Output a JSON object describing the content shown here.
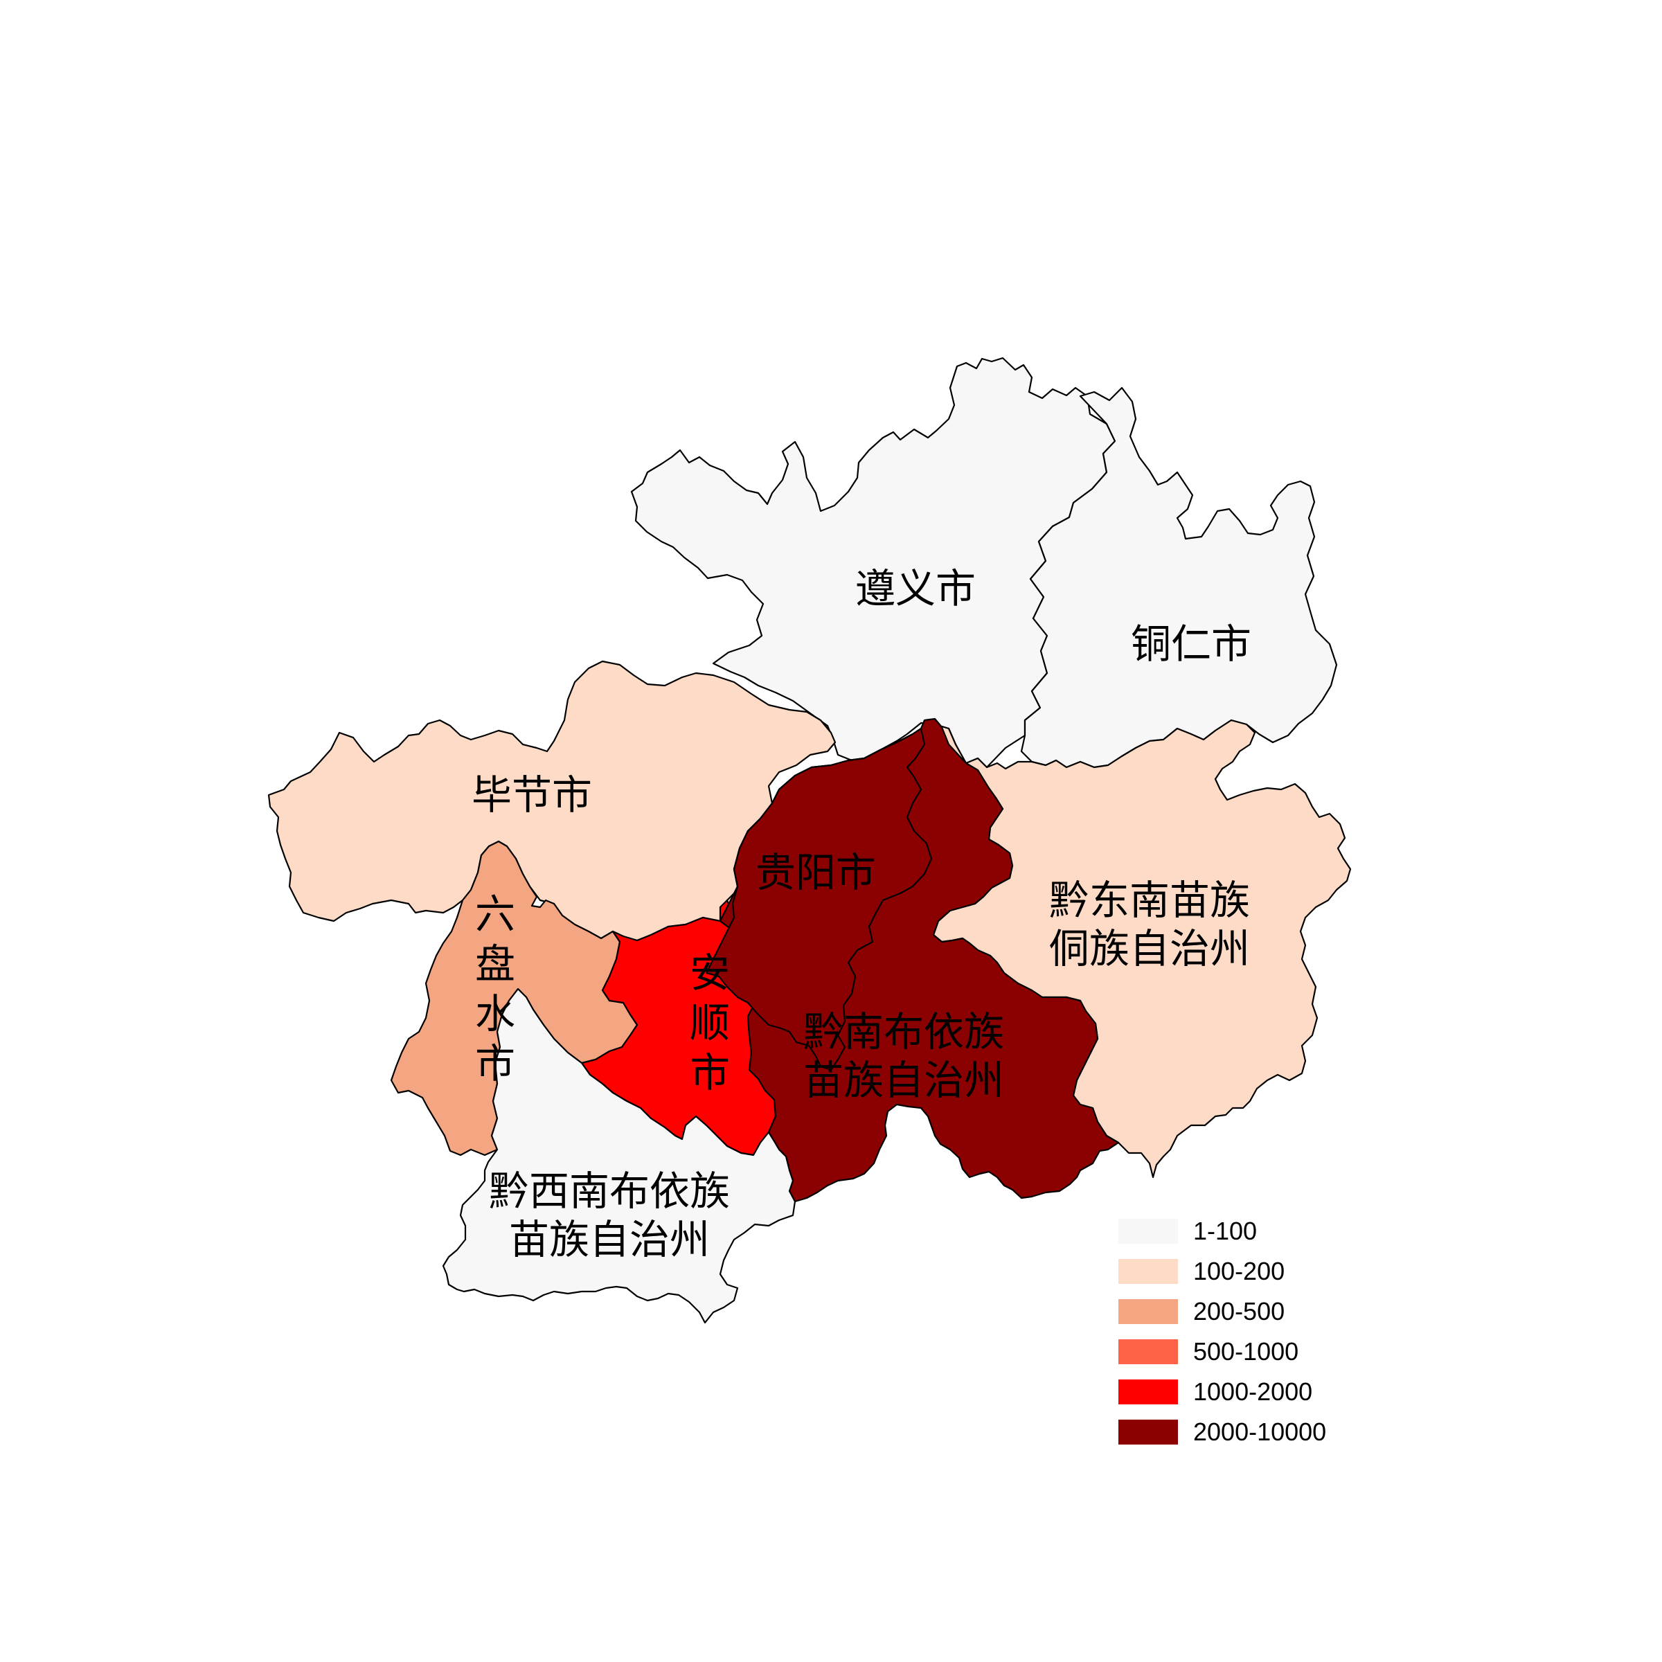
{
  "regions": [
    {
      "id": "zunyi",
      "name": "遵义市",
      "lines": [
        "遵义市"
      ],
      "category": "1-100"
    },
    {
      "id": "tongren",
      "name": "铜仁市",
      "lines": [
        "铜仁市"
      ],
      "category": "1-100"
    },
    {
      "id": "bijie",
      "name": "毕节市",
      "lines": [
        "毕节市"
      ],
      "category": "100-200"
    },
    {
      "id": "guiyang",
      "name": "贵阳市",
      "lines": [
        "贵阳市"
      ],
      "category": "2000-10000"
    },
    {
      "id": "liupanshui",
      "name": "六盘水市",
      "lines": [
        "六",
        "盘",
        "水",
        "市"
      ],
      "category": "200-500"
    },
    {
      "id": "anshun",
      "name": "安顺市",
      "lines": [
        "安",
        "顺",
        "市"
      ],
      "category": "1000-2000"
    },
    {
      "id": "qiandongnan",
      "name": "黔东南苗族侗族自治州",
      "lines": [
        "黔东南苗族",
        "侗族自治州"
      ],
      "category": "100-200"
    },
    {
      "id": "qiannan",
      "name": "黔南布依族苗族自治州",
      "lines": [
        "黔南布依族",
        "苗族自治州"
      ],
      "category": "2000-10000"
    },
    {
      "id": "qianxinan",
      "name": "黔西南布依族苗族自治州",
      "lines": [
        "黔西南布依族",
        "苗族自治州"
      ],
      "category": "1-100"
    }
  ],
  "legend": [
    {
      "label": "1-100",
      "color": "#f7f7f7"
    },
    {
      "label": "100-200",
      "color": "#fddbc7"
    },
    {
      "label": "200-500",
      "color": "#f4a582"
    },
    {
      "label": "500-1000",
      "color": "#ff6347"
    },
    {
      "label": "1000-2000",
      "color": "#ff0000"
    },
    {
      "label": "2000-10000",
      "color": "#8b0000"
    }
  ]
}
